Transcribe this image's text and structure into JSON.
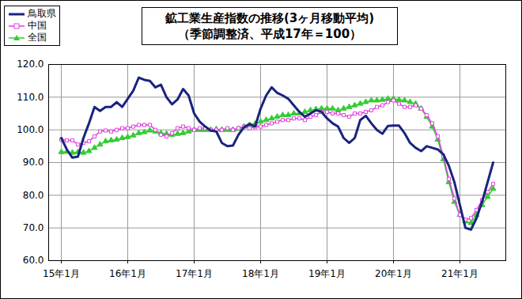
{
  "chart_data": {
    "type": "line",
    "title": "鉱工業生産指数の推移(3ヶ月移動平均)",
    "subtitle": "（季節調整済、平成17年＝100）",
    "categories": [
      "15年1月",
      null,
      null,
      null,
      null,
      null,
      null,
      null,
      null,
      null,
      null,
      null,
      "16年1月",
      null,
      null,
      null,
      null,
      null,
      null,
      null,
      null,
      null,
      null,
      null,
      "17年1月",
      null,
      null,
      null,
      null,
      null,
      null,
      null,
      null,
      null,
      null,
      null,
      "18年1月",
      null,
      null,
      null,
      null,
      null,
      null,
      null,
      null,
      null,
      null,
      null,
      "19年1月",
      null,
      null,
      null,
      null,
      null,
      null,
      null,
      null,
      null,
      null,
      null,
      "20年1月",
      null,
      null,
      null,
      null,
      null,
      null,
      null,
      null,
      null,
      null,
      null,
      "21年1月",
      null,
      null,
      null,
      null,
      null,
      null
    ],
    "series": [
      {
        "name": "鳥取県",
        "color": "#1a237e",
        "marker": "none",
        "line_style": "solid",
        "values": [
          97.5,
          94,
          91.5,
          91.8,
          97.5,
          102,
          107,
          105.8,
          107,
          107,
          108.5,
          107,
          109.5,
          112,
          116,
          115.3,
          115,
          113,
          113.8,
          110,
          107.8,
          109.3,
          112.5,
          110.5,
          105,
          102.5,
          101,
          99.8,
          99.5,
          96,
          95,
          95.2,
          98.5,
          100.8,
          101.8,
          101,
          106.5,
          110.5,
          113,
          111.3,
          110.5,
          109.5,
          107.5,
          105.5,
          104,
          105,
          106,
          105.5,
          103.5,
          102,
          101,
          97.5,
          96,
          97.5,
          103,
          104.3,
          102,
          100,
          98.8,
          101.2,
          101.3,
          101.3,
          99,
          96,
          94.5,
          93.5,
          95,
          94.5,
          94,
          92.5,
          89,
          84,
          77,
          70,
          69.5,
          73,
          78,
          84,
          90
        ]
      },
      {
        "name": "中国",
        "color": "#e040e0",
        "marker": "square",
        "line_style": "solid",
        "values": [
          97,
          96.8,
          96.8,
          95.5,
          96,
          96.5,
          98,
          99.5,
          99.8,
          99.5,
          100,
          100.5,
          100.5,
          101,
          101.5,
          101.5,
          101.5,
          100,
          98.5,
          98,
          99,
          100.5,
          101,
          100.5,
          100,
          100.5,
          100.5,
          100,
          100,
          100,
          100.5,
          100,
          100.5,
          101,
          100.5,
          100.8,
          101,
          101.5,
          102,
          102.5,
          103,
          103,
          103.5,
          103.5,
          103,
          104,
          104.5,
          105.5,
          105.5,
          105,
          105,
          104.5,
          104,
          105,
          105,
          105.5,
          106,
          107,
          107.5,
          108.5,
          109,
          108,
          107,
          107,
          107.5,
          106.5,
          104.5,
          102,
          98,
          92,
          85,
          79,
          74,
          72.5,
          73,
          75.5,
          78.5,
          81,
          83.5
        ]
      },
      {
        "name": "全国",
        "color": "#33cc33",
        "marker": "triangle",
        "line_style": "solid",
        "values": [
          93.2,
          93.3,
          93,
          93.2,
          93,
          93.5,
          94.5,
          95.5,
          96.5,
          96.8,
          97,
          97.5,
          97.8,
          98.3,
          99,
          99.3,
          99.8,
          99.5,
          99,
          98.8,
          98.5,
          98.8,
          99,
          99.5,
          100,
          100,
          100,
          100,
          100.2,
          100,
          100,
          100,
          100.3,
          101,
          101.5,
          101.8,
          102.5,
          103,
          103.5,
          104,
          104.5,
          104.5,
          105,
          105,
          105.5,
          106,
          106.3,
          106.5,
          106.5,
          106.5,
          106,
          106.5,
          107,
          107.5,
          108,
          108.5,
          109,
          109,
          109.2,
          109.5,
          109.5,
          109.2,
          109,
          108.5,
          108,
          106.5,
          104,
          101,
          97,
          91,
          84,
          78,
          74,
          72,
          71.5,
          74,
          77,
          79.5,
          82
        ]
      }
    ],
    "ylim": [
      60,
      120
    ],
    "yticks": [
      {
        "value": 60,
        "label": "60.0"
      },
      {
        "value": 70,
        "label": "70.0"
      },
      {
        "value": 80,
        "label": "80.0"
      },
      {
        "value": 90,
        "label": "90.0"
      },
      {
        "value": 100,
        "label": "100.0"
      },
      {
        "value": 110,
        "label": "110.0"
      },
      {
        "value": 120,
        "label": "120.0"
      }
    ],
    "grid": true,
    "legend": "top-left"
  }
}
